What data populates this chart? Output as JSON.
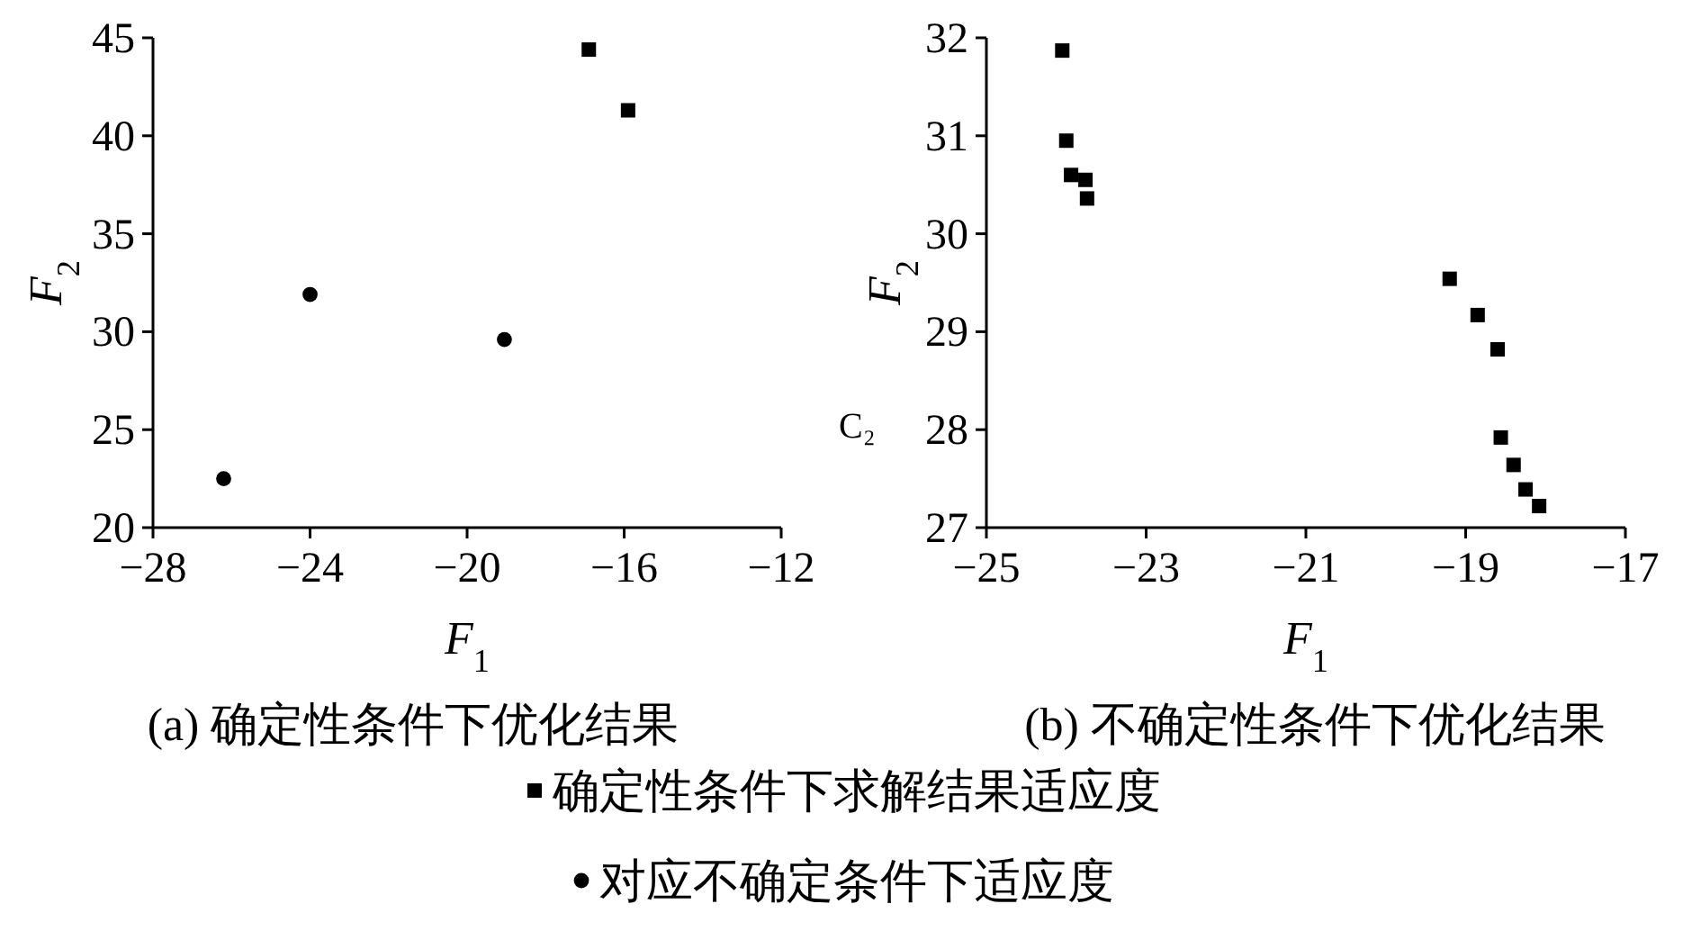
{
  "chart_data": [
    {
      "type": "scatter",
      "title": "(a) 确定性条件下优化结果",
      "xlabel": "F$_{1}$",
      "ylabel": "F$_{2}$",
      "xlim": [
        -28,
        -12
      ],
      "xticks": [
        -28,
        -24,
        -20,
        -16,
        -12
      ],
      "ylim": [
        20,
        45
      ],
      "yticks": [
        20,
        25,
        30,
        35,
        40,
        45
      ],
      "grid": false,
      "legend": "bottom",
      "series": [
        {
          "name": "确定性条件下求解结果适应度",
          "color": "#000000",
          "marker": "square",
          "x": [
            -16.9,
            -15.9
          ],
          "values": [
            44.4,
            41.3
          ]
        },
        {
          "name": "对应不确定条件下适应度",
          "color": "#000000",
          "marker": "circle",
          "x": [
            -24.0,
            -19.05,
            -26.2
          ],
          "values": [
            31.9,
            29.6,
            22.5
          ]
        }
      ]
    },
    {
      "type": "scatter",
      "title": "(b) 不确定性条件下优化结果",
      "xlabel": "F$_{1}$",
      "ylabel": "F$_{2}$",
      "annotations": [
        "C₂"
      ],
      "xlim": [
        -25,
        -17
      ],
      "xticks": [
        -25,
        -23,
        -21,
        -19,
        -17
      ],
      "ylim": [
        27,
        32
      ],
      "yticks": [
        27,
        28,
        29,
        30,
        31,
        32
      ],
      "grid": false,
      "series": [
        {
          "color": "#000000",
          "marker": "square",
          "x": [
            -24.05,
            -24.0,
            -23.94,
            -23.76,
            -23.74,
            -19.2,
            -18.85,
            -18.6,
            -18.56,
            -18.4,
            -18.25,
            -18.08
          ],
          "values": [
            31.87,
            30.95,
            30.6,
            30.55,
            30.36,
            29.54,
            29.17,
            28.82,
            27.92,
            27.64,
            27.39,
            27.22
          ]
        }
      ]
    }
  ]
}
